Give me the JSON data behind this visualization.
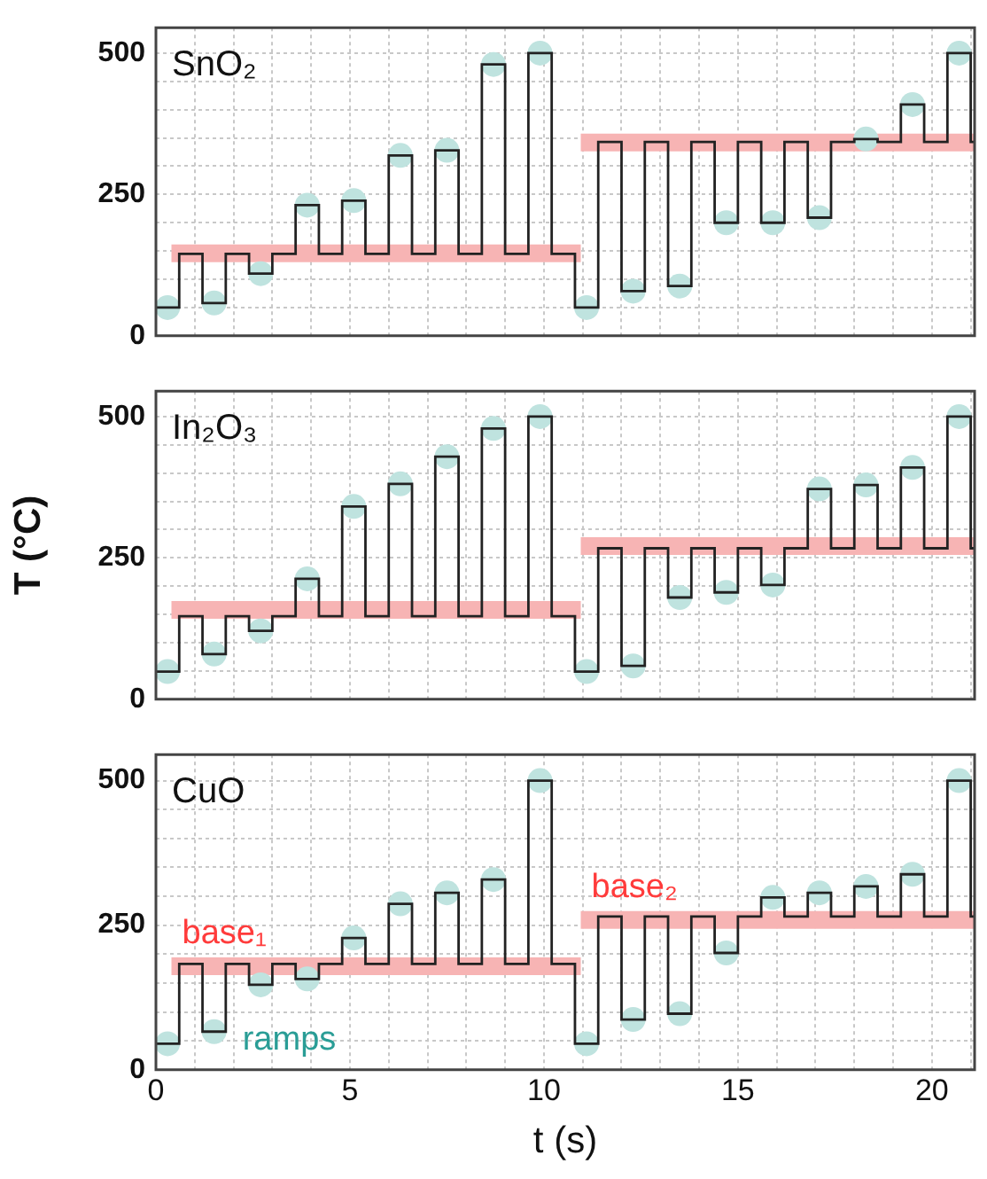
{
  "chart_data": [
    {
      "type": "step",
      "title": "SnO₂",
      "tick_labels": "y",
      "grid": true,
      "legend": false,
      "xlim": [
        0,
        21.1
      ],
      "xticks": [
        0,
        {
          "value": 1,
          "label": null
        },
        {
          "value": 2,
          "label": null
        },
        {
          "value": 3,
          "label": null
        },
        {
          "value": 4,
          "label": null
        },
        5,
        {
          "value": 6,
          "label": null
        },
        {
          "value": 7,
          "label": null
        },
        {
          "value": 8,
          "label": null
        },
        {
          "value": 9,
          "label": null
        },
        10,
        {
          "value": 11,
          "label": null
        },
        {
          "value": 12,
          "label": null
        },
        {
          "value": 13,
          "label": null
        },
        {
          "value": 14,
          "label": null
        },
        15,
        {
          "value": 16,
          "label": null
        },
        {
          "value": 17,
          "label": null
        },
        {
          "value": 18,
          "label": null
        },
        {
          "value": 19,
          "label": null
        },
        20,
        {
          "value": 21,
          "label": null
        }
      ],
      "ylim": [
        0,
        545
      ],
      "yticks": [
        0,
        {
          "value": 50,
          "label": null
        },
        {
          "value": 100,
          "label": null
        },
        {
          "value": 150,
          "label": null
        },
        {
          "value": 200,
          "label": null
        },
        250,
        {
          "value": 300,
          "label": null
        },
        {
          "value": 350,
          "label": null
        },
        {
          "value": 400,
          "label": null
        },
        {
          "value": 450,
          "label": null
        },
        500
      ],
      "series": [
        {
          "type": "step",
          "color": "#222222",
          "x": [
            0,
            0.6,
            1.2,
            1.8,
            2.4,
            3.0,
            3.6,
            4.2,
            4.8,
            5.4,
            6.0,
            6.6,
            7.2,
            7.8,
            8.4,
            9.0,
            9.6,
            10.2,
            10.8,
            11.4,
            12.0,
            12.6,
            13.2,
            13.8,
            14.4,
            15.0,
            15.6,
            16.2,
            16.8,
            17.4,
            18.0,
            18.6,
            19.2,
            19.8,
            20.4,
            21.0,
            21.1
          ],
          "values": [
            50,
            145,
            58,
            145,
            110,
            145,
            231,
            145,
            239,
            145,
            319,
            145,
            328,
            145,
            480,
            145,
            500,
            145,
            50,
            343,
            79,
            343,
            88,
            343,
            200,
            343,
            200,
            343,
            209,
            343,
            348,
            343,
            409,
            343,
            500,
            343,
            343
          ]
        },
        {
          "type": "line",
          "color": "#f7b4b4",
          "x": [
            0.4,
            10.95
          ],
          "values": [
            146,
            146
          ]
        },
        {
          "type": "line",
          "color": "#f7b4b4",
          "x": [
            10.95,
            21.1
          ],
          "values": [
            342,
            342
          ]
        },
        {
          "type": "scatter",
          "marker": "circle",
          "color": "#bfe3df",
          "x": [
            0.3,
            1.5,
            2.7,
            3.9,
            5.1,
            6.3,
            7.5,
            8.7,
            9.9,
            11.1,
            12.3,
            13.5,
            14.7,
            15.9,
            17.1,
            18.3,
            19.5,
            20.7
          ],
          "values": [
            50,
            58,
            110,
            231,
            239,
            319,
            328,
            480,
            500,
            50,
            79,
            88,
            200,
            200,
            209,
            348,
            409,
            500
          ]
        }
      ]
    },
    {
      "type": "step",
      "title": "In₂O₃",
      "ylabel": "T (°C)",
      "tick_labels": "y",
      "grid": true,
      "legend": false,
      "xlim": [
        0,
        21.1
      ],
      "xticks": [
        0,
        {
          "value": 1,
          "label": null
        },
        {
          "value": 2,
          "label": null
        },
        {
          "value": 3,
          "label": null
        },
        {
          "value": 4,
          "label": null
        },
        5,
        {
          "value": 6,
          "label": null
        },
        {
          "value": 7,
          "label": null
        },
        {
          "value": 8,
          "label": null
        },
        {
          "value": 9,
          "label": null
        },
        10,
        {
          "value": 11,
          "label": null
        },
        {
          "value": 12,
          "label": null
        },
        {
          "value": 13,
          "label": null
        },
        {
          "value": 14,
          "label": null
        },
        15,
        {
          "value": 16,
          "label": null
        },
        {
          "value": 17,
          "label": null
        },
        {
          "value": 18,
          "label": null
        },
        {
          "value": 19,
          "label": null
        },
        20,
        {
          "value": 21,
          "label": null
        }
      ],
      "ylim": [
        0,
        545
      ],
      "yticks": [
        0,
        {
          "value": 50,
          "label": null
        },
        {
          "value": 100,
          "label": null
        },
        {
          "value": 150,
          "label": null
        },
        {
          "value": 200,
          "label": null
        },
        250,
        {
          "value": 300,
          "label": null
        },
        {
          "value": 350,
          "label": null
        },
        {
          "value": 400,
          "label": null
        },
        {
          "value": 450,
          "label": null
        },
        500
      ],
      "series": [
        {
          "type": "step",
          "color": "#222222",
          "x": [
            0,
            0.6,
            1.2,
            1.8,
            2.4,
            3.0,
            3.6,
            4.2,
            4.8,
            5.4,
            6.0,
            6.6,
            7.2,
            7.8,
            8.4,
            9.0,
            9.6,
            10.2,
            10.8,
            11.4,
            12.0,
            12.6,
            13.2,
            13.8,
            14.4,
            15.0,
            15.6,
            16.2,
            16.8,
            17.4,
            18.0,
            18.6,
            19.2,
            19.8,
            20.4,
            21.0,
            21.1
          ],
          "values": [
            49,
            147,
            80,
            147,
            121,
            147,
            213,
            147,
            341,
            147,
            381,
            147,
            429,
            147,
            479,
            147,
            500,
            147,
            49,
            267,
            59,
            267,
            180,
            267,
            189,
            267,
            202,
            267,
            372,
            267,
            379,
            267,
            410,
            267,
            500,
            267,
            267
          ]
        },
        {
          "type": "line",
          "color": "#f7b4b4",
          "x": [
            0.4,
            10.95
          ],
          "values": [
            158,
            158
          ]
        },
        {
          "type": "line",
          "color": "#f7b4b4",
          "x": [
            10.95,
            21.1
          ],
          "values": [
            271,
            271
          ]
        },
        {
          "type": "scatter",
          "marker": "circle",
          "color": "#bfe3df",
          "x": [
            0.3,
            1.5,
            2.7,
            3.9,
            5.1,
            6.3,
            7.5,
            8.7,
            9.9,
            11.1,
            12.3,
            13.5,
            14.7,
            15.9,
            17.1,
            18.3,
            19.5,
            20.7
          ],
          "values": [
            49,
            80,
            121,
            213,
            341,
            381,
            429,
            479,
            500,
            49,
            59,
            180,
            189,
            202,
            372,
            379,
            410,
            500
          ]
        }
      ]
    },
    {
      "type": "step",
      "title": "CuO",
      "xlabel": "t (s)",
      "grid": true,
      "legend": false,
      "xlim": [
        0,
        21.1
      ],
      "xticks": [
        0,
        {
          "value": 1,
          "label": null
        },
        {
          "value": 2,
          "label": null
        },
        {
          "value": 3,
          "label": null
        },
        {
          "value": 4,
          "label": null
        },
        5,
        {
          "value": 6,
          "label": null
        },
        {
          "value": 7,
          "label": null
        },
        {
          "value": 8,
          "label": null
        },
        {
          "value": 9,
          "label": null
        },
        10,
        {
          "value": 11,
          "label": null
        },
        {
          "value": 12,
          "label": null
        },
        {
          "value": 13,
          "label": null
        },
        {
          "value": 14,
          "label": null
        },
        15,
        {
          "value": 16,
          "label": null
        },
        {
          "value": 17,
          "label": null
        },
        {
          "value": 18,
          "label": null
        },
        {
          "value": 19,
          "label": null
        },
        20,
        {
          "value": 21,
          "label": null
        }
      ],
      "ylim": [
        0,
        545
      ],
      "yticks": [
        0,
        {
          "value": 50,
          "label": null
        },
        {
          "value": 100,
          "label": null
        },
        {
          "value": 150,
          "label": null
        },
        {
          "value": 200,
          "label": null
        },
        250,
        {
          "value": 300,
          "label": null
        },
        {
          "value": 350,
          "label": null
        },
        {
          "value": 400,
          "label": null
        },
        {
          "value": 450,
          "label": null
        },
        500
      ],
      "series": [
        {
          "type": "step",
          "color": "#222222",
          "x": [
            0,
            0.6,
            1.2,
            1.8,
            2.4,
            3.0,
            3.6,
            4.2,
            4.8,
            5.4,
            6.0,
            6.6,
            7.2,
            7.8,
            8.4,
            9.0,
            9.6,
            10.2,
            10.8,
            11.4,
            12.0,
            12.6,
            13.2,
            13.8,
            14.4,
            15.0,
            15.6,
            16.2,
            16.8,
            17.4,
            18.0,
            18.6,
            19.2,
            19.8,
            20.4,
            21.0,
            21.1
          ],
          "values": [
            45,
            183,
            66,
            183,
            147,
            183,
            157,
            183,
            228,
            183,
            287,
            183,
            306,
            183,
            329,
            183,
            500,
            183,
            45,
            265,
            87,
            265,
            97,
            265,
            202,
            265,
            298,
            265,
            306,
            265,
            317,
            265,
            338,
            265,
            500,
            265,
            265
          ]
        },
        {
          "type": "line",
          "name": "base₁",
          "color": "#f7b4b4",
          "x": [
            0.4,
            10.95
          ],
          "values": [
            179,
            179
          ]
        },
        {
          "type": "line",
          "name": "base₂",
          "color": "#f7b4b4",
          "x": [
            10.95,
            21.1
          ],
          "values": [
            259,
            259
          ]
        },
        {
          "type": "scatter",
          "name": "ramps",
          "marker": "circle",
          "color": "#bfe3df",
          "x": [
            0.3,
            1.5,
            2.7,
            3.9,
            5.1,
            6.3,
            7.5,
            8.7,
            9.9,
            11.1,
            12.3,
            13.5,
            14.7,
            15.9,
            17.1,
            18.3,
            19.5,
            20.7
          ],
          "values": [
            45,
            66,
            147,
            157,
            228,
            287,
            306,
            329,
            500,
            45,
            87,
            97,
            202,
            298,
            306,
            317,
            338,
            500
          ]
        }
      ]
    }
  ]
}
